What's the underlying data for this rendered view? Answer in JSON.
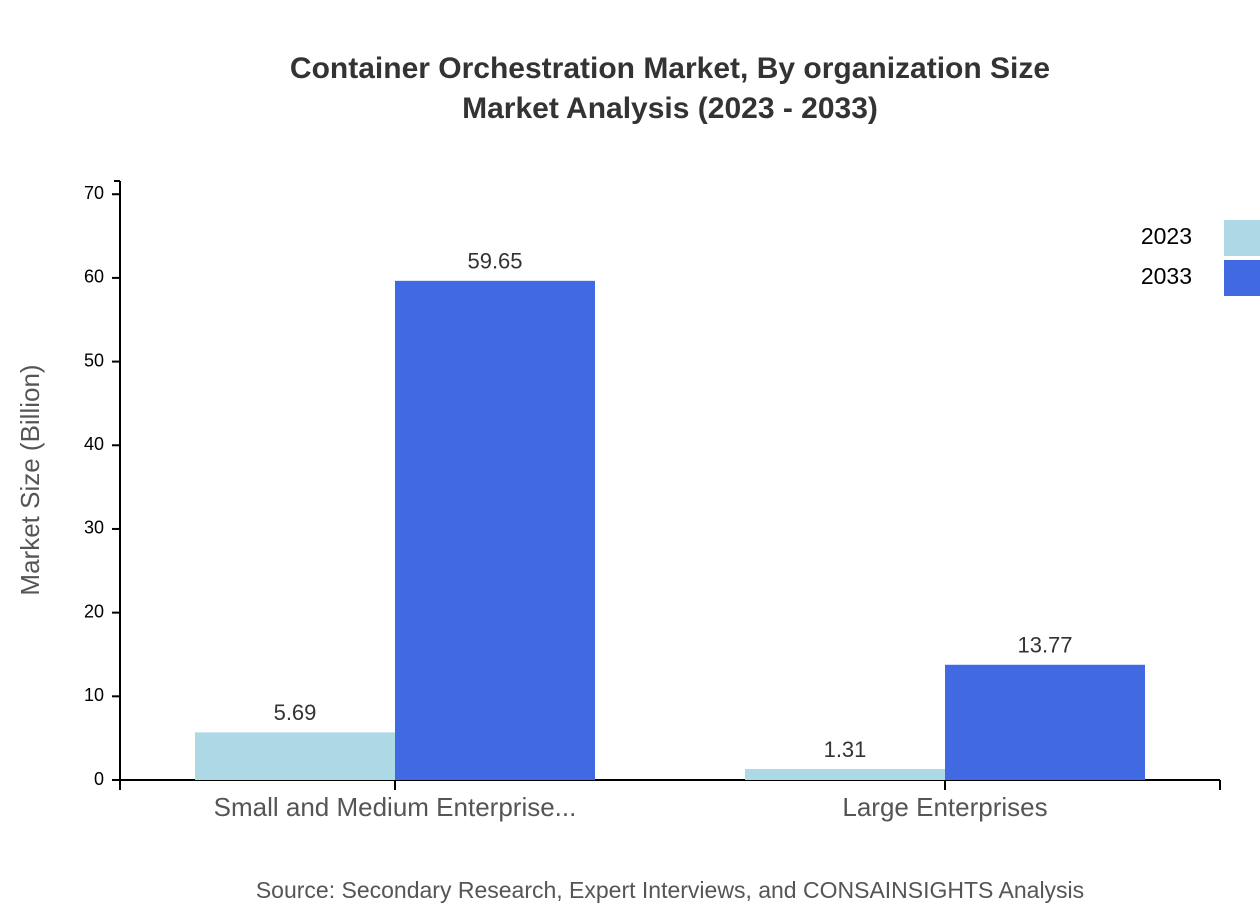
{
  "chart_data": {
    "type": "bar",
    "title": "Container Orchestration Market, By organization Size",
    "subtitle": "Market Analysis (2023 - 2033)",
    "y_label": "Market Size (Billion)",
    "source": "Source: Secondary Research, Expert Interviews, and CONSAINSIGHTS Analysis",
    "categories": [
      "Small and Medium Enterprise...",
      "Large Enterprises"
    ],
    "series": [
      {
        "name": "2023",
        "color": "#add8e6",
        "values": [
          5.69,
          1.31
        ]
      },
      {
        "name": "2033",
        "color": "#4169e1",
        "values": [
          59.65,
          13.77
        ]
      }
    ],
    "ylim": [
      0,
      71.58
    ],
    "yticks": [
      0,
      10,
      20,
      30,
      40,
      50,
      60,
      70
    ],
    "legend": "top-right"
  }
}
